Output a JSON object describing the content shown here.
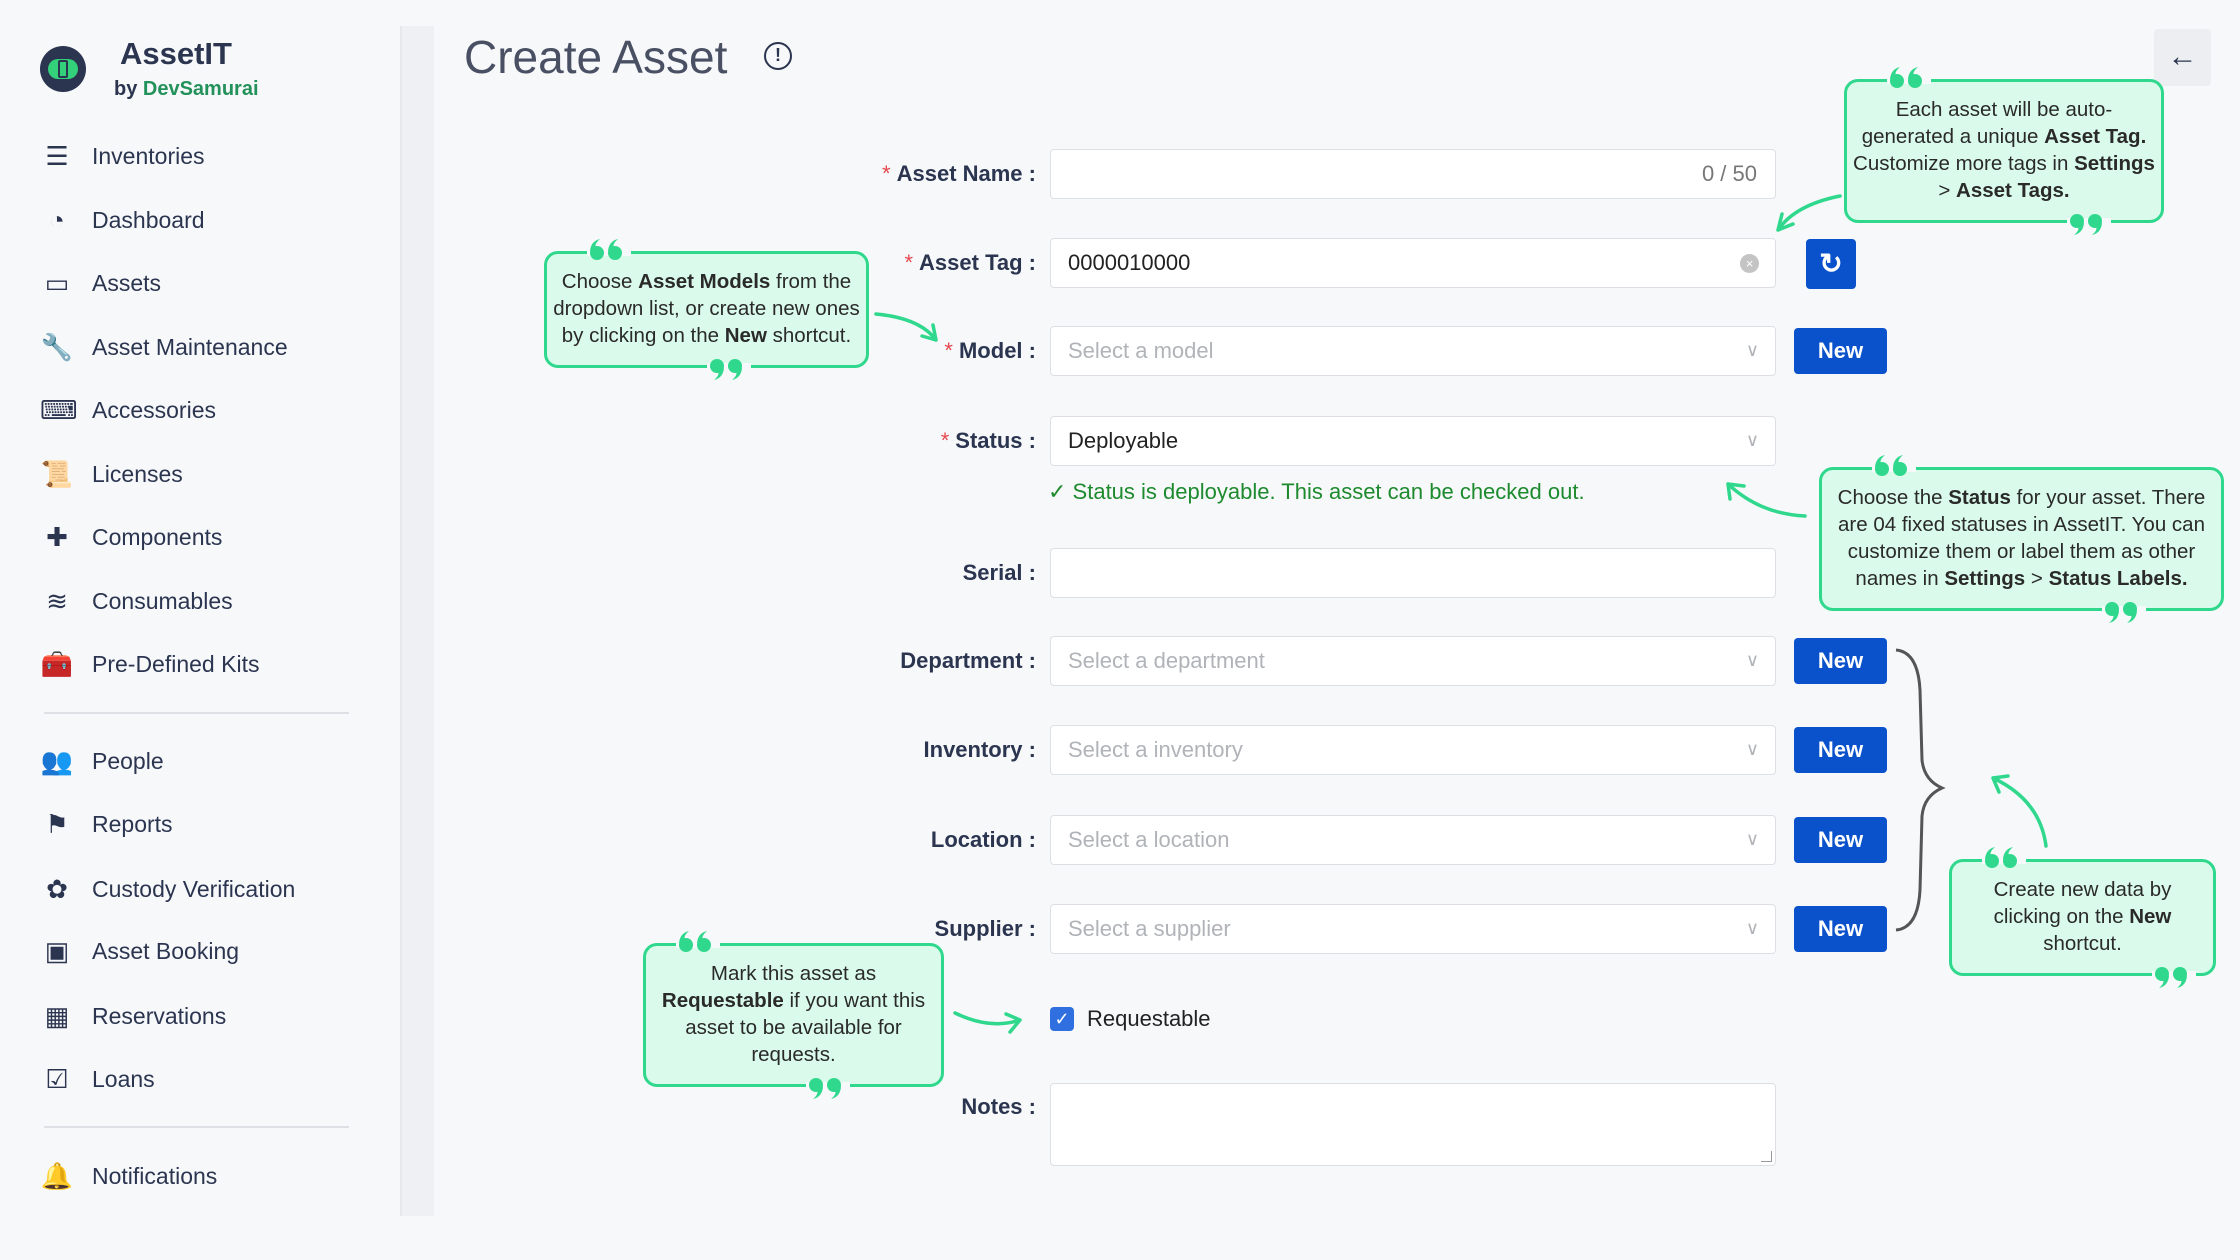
{
  "app": {
    "name": "AssetIT",
    "by": "by",
    "vendor": "DevSamurai"
  },
  "sidebar": {
    "items": [
      {
        "label": "Inventories",
        "icon": "sliders-icon"
      },
      {
        "label": "Dashboard",
        "icon": "gauge-icon"
      },
      {
        "label": "Assets",
        "icon": "laptop-icon"
      },
      {
        "label": "Asset Maintenance",
        "icon": "wrench-icon"
      },
      {
        "label": "Accessories",
        "icon": "keyboard-icon"
      },
      {
        "label": "Licenses",
        "icon": "scroll-icon"
      },
      {
        "label": "Components",
        "icon": "puzzle-icon"
      },
      {
        "label": "Consumables",
        "icon": "layers-icon"
      },
      {
        "label": "Pre-Defined Kits",
        "icon": "toolbox-icon"
      }
    ],
    "items2": [
      {
        "label": "People",
        "icon": "users-icon"
      },
      {
        "label": "Reports",
        "icon": "flag-icon"
      },
      {
        "label": "Custody Verification",
        "icon": "badge-check-icon"
      },
      {
        "label": "Asset Booking",
        "icon": "booking-icon"
      },
      {
        "label": "Reservations",
        "icon": "calendar-icon"
      },
      {
        "label": "Loans",
        "icon": "calendar-check-icon"
      }
    ],
    "items3": [
      {
        "label": "Notifications",
        "icon": "bell-icon"
      }
    ]
  },
  "page": {
    "title": "Create Asset"
  },
  "form": {
    "asset_name": {
      "label": "Asset Name",
      "value": "",
      "counter": "0 / 50"
    },
    "asset_tag": {
      "label": "Asset Tag",
      "value": "0000010000"
    },
    "model": {
      "label": "Model",
      "placeholder": "Select a model"
    },
    "status": {
      "label": "Status",
      "value": "Deployable",
      "message": "Status is deployable. This asset can be checked out."
    },
    "serial": {
      "label": "Serial",
      "value": ""
    },
    "department": {
      "label": "Department",
      "placeholder": "Select a department"
    },
    "inventory": {
      "label": "Inventory",
      "placeholder": "Select a inventory"
    },
    "location": {
      "label": "Location",
      "placeholder": "Select a location"
    },
    "supplier": {
      "label": "Supplier",
      "placeholder": "Select a supplier"
    },
    "requestable": {
      "label": "Requestable",
      "checked": true
    },
    "notes": {
      "label": "Notes",
      "value": ""
    },
    "new_label": "New"
  },
  "callouts": [
    [
      {
        "t": "Each asset will be auto-generated a unique "
      },
      {
        "t": "Asset Tag.",
        "b": true
      },
      {
        "t": " Customize more tags in "
      },
      {
        "t": "Settings",
        "b": true
      },
      {
        "t": " > "
      },
      {
        "t": "Asset Tags.",
        "b": true
      }
    ],
    [
      {
        "t": "Choose "
      },
      {
        "t": "Asset Models",
        "b": true
      },
      {
        "t": " from the dropdown list, or create new ones by clicking on the "
      },
      {
        "t": "New",
        "b": true
      },
      {
        "t": " shortcut."
      }
    ],
    [
      {
        "t": "Choose the "
      },
      {
        "t": "Status",
        "b": true
      },
      {
        "t": " for your asset. There are 04 fixed statuses in AssetIT. You can customize them or label them as other names in "
      },
      {
        "t": "Settings",
        "b": true
      },
      {
        "t": " > "
      },
      {
        "t": "Status Labels.",
        "b": true
      }
    ],
    [
      {
        "t": "Create new data by clicking on the "
      },
      {
        "t": "New",
        "b": true
      },
      {
        "t": " shortcut."
      }
    ],
    [
      {
        "t": "Mark this asset as "
      },
      {
        "t": "Requestable",
        "b": true
      },
      {
        "t": " if you want this asset to be available for requests."
      }
    ]
  ],
  "colors": {
    "accent": "#0a52cc",
    "callout_border": "#2fd88c",
    "callout_bg": "#dafbeb",
    "success": "#1e8a2e",
    "brand_green": "#23915a"
  }
}
